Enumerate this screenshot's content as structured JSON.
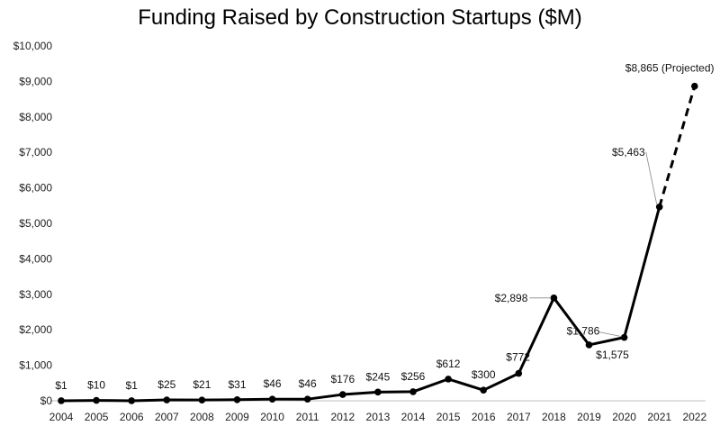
{
  "chart_data": {
    "type": "line",
    "title": "Funding Raised by Construction Startups ($M)",
    "xlabel": "",
    "ylabel": "",
    "ylim": [
      0,
      10000
    ],
    "yticks": [
      0,
      1000,
      2000,
      3000,
      4000,
      5000,
      6000,
      7000,
      8000,
      9000,
      10000
    ],
    "ytick_labels": [
      "$0",
      "$1,000",
      "$2,000",
      "$3,000",
      "$4,000",
      "$5,000",
      "$6,000",
      "$7,000",
      "$8,000",
      "$9,000",
      "$10,000"
    ],
    "categories": [
      "2004",
      "2005",
      "2006",
      "2007",
      "2008",
      "2009",
      "2010",
      "2011",
      "2012",
      "2013",
      "2014",
      "2015",
      "2016",
      "2017",
      "2018",
      "2019",
      "2020",
      "2021",
      "2022"
    ],
    "series": [
      {
        "name": "Funding",
        "values": [
          1,
          10,
          1,
          25,
          21,
          31,
          46,
          46,
          176,
          245,
          256,
          612,
          300,
          772,
          2898,
          1575,
          1786,
          5463,
          8865
        ],
        "labels": [
          "$1",
          "$10",
          "$1",
          "$25",
          "$21",
          "$31",
          "$46",
          "$46",
          "$176",
          "$245",
          "$256",
          "$612",
          "$300",
          "$772",
          "$2,898",
          "$1,575",
          "$1,786",
          "$5,463",
          "$8,865 (Projected)"
        ],
        "projected_from_index": 17
      }
    ],
    "grid": false,
    "line_color": "#000000"
  }
}
